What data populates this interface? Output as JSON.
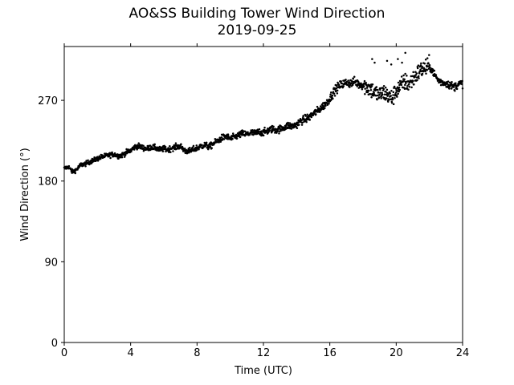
{
  "chart_data": {
    "type": "scatter",
    "title": "AO&SS Building Tower Wind Direction",
    "subtitle": "2019-09-25",
    "xlabel": "Time (UTC)",
    "ylabel": "Wind Direction (°)",
    "xlim": [
      0,
      24
    ],
    "ylim": [
      0,
      330
    ],
    "xticks": [
      0,
      4,
      8,
      12,
      16,
      20,
      24
    ],
    "xtick_labels": [
      "0",
      "4",
      "8",
      "12",
      "16",
      "20",
      "24"
    ],
    "yticks": [
      0,
      90,
      180,
      270
    ],
    "ytick_labels": [
      "0",
      "90",
      "180",
      "270"
    ],
    "grid": false,
    "marker_color": "#000000",
    "series": [
      {
        "x": [
          0.0,
          0.25,
          0.5,
          0.75,
          1.0,
          1.25,
          1.5,
          1.75,
          2.0,
          2.25,
          2.5,
          2.75,
          3.0,
          3.25,
          3.5,
          3.75,
          4.0,
          4.25,
          4.5,
          4.75,
          5.0,
          5.25,
          5.5,
          5.75,
          6.0,
          6.25,
          6.5,
          6.75,
          7.0,
          7.25,
          7.5,
          7.75,
          8.0,
          8.25,
          8.5,
          8.75,
          9.0,
          9.25,
          9.5,
          9.75,
          10.0,
          10.25,
          10.5,
          10.75,
          11.0,
          11.25,
          11.5,
          11.75,
          12.0,
          12.25,
          12.5,
          12.75,
          13.0,
          13.25,
          13.5,
          13.75,
          14.0,
          14.25,
          14.5,
          14.75,
          15.0,
          15.25,
          15.5,
          15.75,
          16.0,
          16.25,
          16.5,
          16.75,
          17.0,
          17.25,
          17.5,
          17.75,
          18.0,
          18.25,
          18.5,
          18.75,
          19.0,
          19.25,
          19.5,
          19.75,
          20.0,
          20.25,
          20.5,
          20.75,
          21.0,
          21.25,
          21.5,
          21.75,
          22.0,
          22.25,
          22.5,
          22.75,
          23.0,
          23.25,
          23.5,
          23.75,
          24.0
        ],
        "y": [
          194,
          196,
          190,
          193,
          198,
          199,
          201,
          203,
          205,
          207,
          208,
          209,
          210,
          208,
          209,
          212,
          214,
          218,
          219,
          217,
          216,
          218,
          217,
          215,
          216,
          215,
          217,
          218,
          219,
          214,
          213,
          215,
          217,
          219,
          220,
          218,
          222,
          225,
          228,
          230,
          227,
          229,
          231,
          233,
          232,
          234,
          233,
          235,
          234,
          236,
          238,
          237,
          238,
          240,
          242,
          241,
          243,
          247,
          249,
          251,
          255,
          258,
          262,
          266,
          272,
          280,
          285,
          288,
          290,
          289,
          291,
          288,
          287,
          285,
          282,
          278,
          276,
          279,
          275,
          272,
          281,
          285,
          291,
          288,
          293,
          299,
          304,
          306,
          308,
          301,
          293,
          290,
          289,
          287,
          285,
          288,
          289
        ]
      }
    ],
    "outliers": {
      "x": [
        18.55,
        18.7,
        19.45,
        19.7,
        20.1,
        20.35,
        20.55,
        21.45,
        21.55
      ],
      "y": [
        316,
        312,
        314,
        310,
        316,
        312,
        323,
        308,
        306
      ]
    }
  }
}
